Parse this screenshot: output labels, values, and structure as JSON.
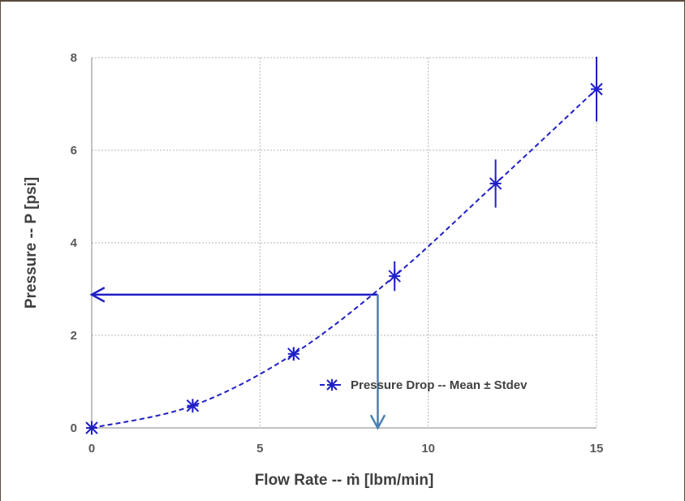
{
  "chart_data": {
    "type": "scatter",
    "title": "",
    "xlabel": "Flow Rate -- ṁ [lbm/min]",
    "ylabel": "Pressure -- P [psi]",
    "xlim": [
      0,
      15
    ],
    "ylim": [
      0,
      8
    ],
    "xticks": [
      "0",
      "5",
      "10",
      "15"
    ],
    "yticks": [
      "0",
      "2",
      "4",
      "6",
      "8"
    ],
    "grid": true,
    "legend_position": "bottom-right",
    "series": [
      {
        "name": "Pressure Drop -- Mean ± Stdev",
        "color": "#1f1fc8",
        "marker": "asterisk",
        "line_style": "dashed",
        "x": [
          0,
          3,
          6,
          9,
          12,
          15
        ],
        "y": [
          0,
          0.48,
          1.6,
          3.28,
          5.28,
          7.32
        ],
        "error": [
          0.04,
          0.1,
          0.13,
          0.32,
          0.52,
          0.7
        ]
      }
    ],
    "annotations": [
      {
        "type": "arrow",
        "from": [
          8.5,
          2.88
        ],
        "to": [
          0,
          2.88
        ],
        "color": "#1f1fc8"
      },
      {
        "type": "arrow",
        "from": [
          8.5,
          2.88
        ],
        "to": [
          8.5,
          0
        ],
        "color": "#4a7fb5"
      }
    ]
  }
}
